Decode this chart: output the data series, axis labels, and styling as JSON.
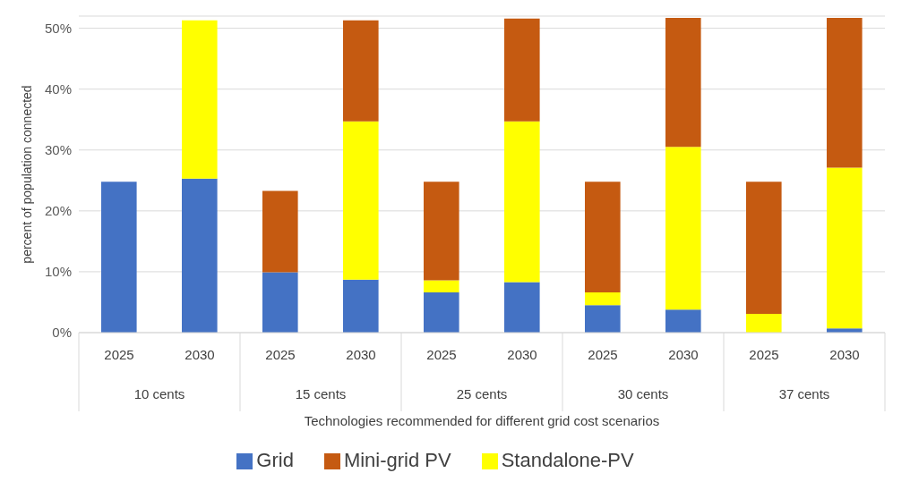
{
  "chart_data": {
    "type": "bar",
    "stacked": true,
    "xlabel": "Technologies recommended for different grid cost scenarios",
    "ylabel": "percent of population connected",
    "categories": [
      "2025",
      "2030",
      "2025",
      "2030",
      "2025",
      "2030",
      "2025",
      "2030",
      "2025",
      "2030"
    ],
    "annotations": [
      "10 cents",
      "15 cents",
      "25 cents",
      "30 cents",
      "37 cents"
    ],
    "series": [
      {
        "name": "Grid",
        "color": "#4472c4",
        "values": [
          24.8,
          25.3,
          9.9,
          8.7,
          6.6,
          8.3,
          4.5,
          3.8,
          0,
          0.7
        ]
      },
      {
        "name": "Standalone-PV",
        "color": "#ffff00",
        "values": [
          0,
          26.0,
          0,
          26.0,
          2.0,
          26.4,
          2.1,
          26.7,
          3.1,
          26.4
        ]
      },
      {
        "name": "Mini-grid PV",
        "color": "#c55a11",
        "values": [
          0,
          0,
          13.4,
          16.6,
          16.2,
          16.9,
          18.2,
          21.2,
          21.7,
          24.6
        ]
      }
    ],
    "ylim": [
      0,
      52
    ],
    "yticks": [
      {
        "value": 0,
        "label": "0%"
      },
      {
        "value": 10,
        "label": "10%"
      },
      {
        "value": 20,
        "label": "20%"
      },
      {
        "value": 30,
        "label": "30%"
      },
      {
        "value": 40,
        "label": "40%"
      },
      {
        "value": 50,
        "label": "50%"
      }
    ],
    "grid": "y",
    "legend": "bottom"
  }
}
